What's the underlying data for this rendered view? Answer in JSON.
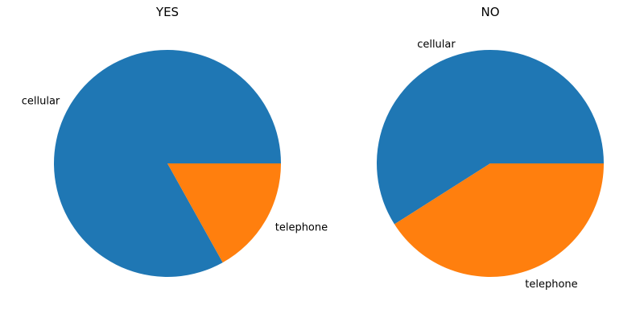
{
  "chart_data": [
    {
      "type": "pie",
      "title": "YES",
      "categories": [
        "cellular",
        "telephone"
      ],
      "values": [
        83.1,
        16.9
      ],
      "colors": [
        "#1f77b4",
        "#ff7f0e"
      ]
    },
    {
      "type": "pie",
      "title": "NO",
      "categories": [
        "cellular",
        "telephone"
      ],
      "values": [
        59.0,
        41.0
      ],
      "colors": [
        "#1f77b4",
        "#ff7f0e"
      ]
    }
  ]
}
